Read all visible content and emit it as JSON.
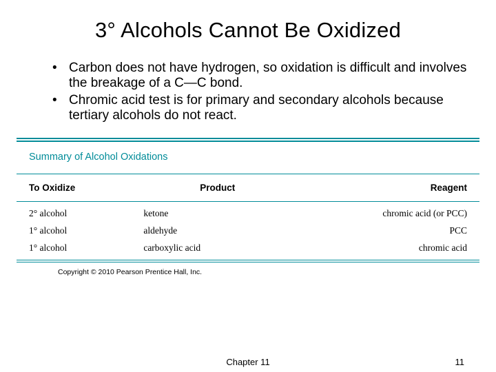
{
  "title": "3° Alcohols Cannot Be Oxidized",
  "bullets": [
    "Carbon does not have hydrogen, so oxidation is difficult and involves the breakage of a C—C bond.",
    "Chromic acid test is for primary and secondary alcohols because tertiary alcohols do not react."
  ],
  "table": {
    "title": "Summary of Alcohol Oxidations",
    "columns": [
      "To Oxidize",
      "Product",
      "Reagent"
    ],
    "rows": [
      [
        "2° alcohol",
        "ketone",
        "chromic acid (or PCC)"
      ],
      [
        "1° alcohol",
        "aldehyde",
        "PCC"
      ],
      [
        "1° alcohol",
        "carboxylic acid",
        "chromic acid"
      ]
    ],
    "accent_color": "#008c99",
    "header_font": "Arial",
    "body_font": "Georgia",
    "header_fontsize": 13.5,
    "body_fontsize": 13.5,
    "col3_align": "right"
  },
  "copyright": "Copyright © 2010 Pearson Prentice Hall, Inc.",
  "footer": {
    "chapter": "Chapter 11",
    "page": "11"
  },
  "colors": {
    "background": "#ffffff",
    "text": "#000000",
    "accent": "#008c99"
  },
  "typography": {
    "title_fontsize": 31,
    "bullet_fontsize": 19,
    "footer_fontsize": 13,
    "copyright_fontsize": 10.5
  }
}
